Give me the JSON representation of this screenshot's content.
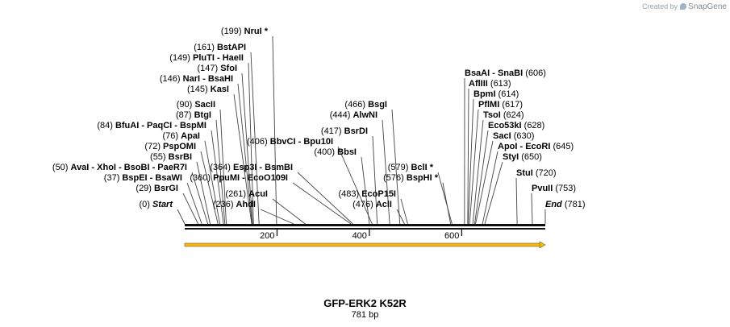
{
  "watermark": {
    "prefix": "Created by",
    "brand": "SnapGene"
  },
  "map": {
    "name": "GFP-ERK2 K52R",
    "length_label": "781 bp",
    "length_bp": 781,
    "ruler_ticks": [
      {
        "pos": 200,
        "label": "200"
      },
      {
        "pos": 400,
        "label": "400"
      },
      {
        "pos": 600,
        "label": "600"
      }
    ],
    "feature": {
      "name": "GFP-ERK2 K52R",
      "start": 1,
      "end": 781,
      "color": "#f2b61f"
    },
    "labels": [
      {
        "text": "NruI *",
        "pos": "(199)",
        "bp": 199,
        "side": "left"
      },
      {
        "text": "BstAPI",
        "pos": "(161)",
        "bp": 161,
        "side": "left"
      },
      {
        "text": "PluTI  - HaeII",
        "pos": "(149)",
        "bp": 149,
        "side": "left"
      },
      {
        "text": "SfoI",
        "pos": "(147)",
        "bp": 147,
        "side": "left"
      },
      {
        "text": "NarI  - BsaHI",
        "pos": "(146)",
        "bp": 146,
        "side": "left"
      },
      {
        "text": "KasI",
        "pos": "(145)",
        "bp": 145,
        "side": "left"
      },
      {
        "text": "SacII",
        "pos": "(90)",
        "bp": 90,
        "side": "left"
      },
      {
        "text": "BtgI",
        "pos": "(87)",
        "bp": 87,
        "side": "left"
      },
      {
        "text": "BfuAI  - PaqCI  - BspMI",
        "pos": "(84)",
        "bp": 84,
        "side": "left"
      },
      {
        "text": "ApaI",
        "pos": "(76)",
        "bp": 76,
        "side": "left"
      },
      {
        "text": "PspOMI",
        "pos": "(72)",
        "bp": 72,
        "side": "left"
      },
      {
        "text": "BsrBI",
        "pos": "(55)",
        "bp": 55,
        "side": "left"
      },
      {
        "text": "AvaI  - XhoI  - BsoBI  - PaeR7I",
        "pos": "(50)",
        "bp": 50,
        "side": "left"
      },
      {
        "text": "BspEI  - BsaWI",
        "pos": "(37)",
        "bp": 37,
        "side": "left"
      },
      {
        "text": "BsrGI",
        "pos": "(29)",
        "bp": 29,
        "side": "left"
      },
      {
        "text": "Start",
        "pos": "(0)",
        "bp": 0,
        "side": "left",
        "italic": true
      },
      {
        "text": "BbvCI  - Bpu10I",
        "pos": "(406)",
        "bp": 406,
        "side": "left"
      },
      {
        "text": "Esp3I  - BsmBI",
        "pos": "(364)",
        "bp": 364,
        "side": "left"
      },
      {
        "text": "PpuMI  - EcoO109I",
        "pos": "(360)",
        "bp": 360,
        "side": "left"
      },
      {
        "text": "AcuI",
        "pos": "(261)",
        "bp": 261,
        "side": "left"
      },
      {
        "text": "AhdI",
        "pos": "(236)",
        "bp": 236,
        "side": "left"
      },
      {
        "text": "BsgI",
        "pos": "(466)",
        "bp": 466,
        "side": "left"
      },
      {
        "text": "AlwNI",
        "pos": "(444)",
        "bp": 444,
        "side": "left"
      },
      {
        "text": "BsrDI",
        "pos": "(417)",
        "bp": 417,
        "side": "left"
      },
      {
        "text": "BbsI",
        "pos": "(400)",
        "bp": 400,
        "side": "left"
      },
      {
        "text": "BclI *",
        "pos": "(579)",
        "bp": 579,
        "side": "left"
      },
      {
        "text": "BspHI *",
        "pos": "(576)",
        "bp": 576,
        "side": "left"
      },
      {
        "text": "EcoP15I",
        "pos": "(483)",
        "bp": 483,
        "side": "left"
      },
      {
        "text": "AclI",
        "pos": "(476)",
        "bp": 476,
        "side": "left"
      },
      {
        "text": "BsaAI  - SnaBI",
        "pos": "(606)",
        "bp": 606,
        "side": "right"
      },
      {
        "text": "AflIII",
        "pos": "(613)",
        "bp": 613,
        "side": "right"
      },
      {
        "text": "BpmI",
        "pos": "(614)",
        "bp": 614,
        "side": "right"
      },
      {
        "text": "PflMI",
        "pos": "(617)",
        "bp": 617,
        "side": "right"
      },
      {
        "text": "TsoI",
        "pos": "(624)",
        "bp": 624,
        "side": "right"
      },
      {
        "text": "Eco53kI",
        "pos": "(628)",
        "bp": 628,
        "side": "right"
      },
      {
        "text": "SacI",
        "pos": "(630)",
        "bp": 630,
        "side": "right"
      },
      {
        "text": "ApoI  - EcoRI",
        "pos": "(645)",
        "bp": 645,
        "side": "right"
      },
      {
        "text": "StyI",
        "pos": "(650)",
        "bp": 650,
        "side": "right"
      },
      {
        "text": "StuI",
        "pos": "(720)",
        "bp": 720,
        "side": "right"
      },
      {
        "text": "PvuII",
        "pos": "(753)",
        "bp": 753,
        "side": "right"
      },
      {
        "text": "End",
        "pos": "(781)",
        "bp": 781,
        "side": "right",
        "italic": true
      }
    ]
  }
}
